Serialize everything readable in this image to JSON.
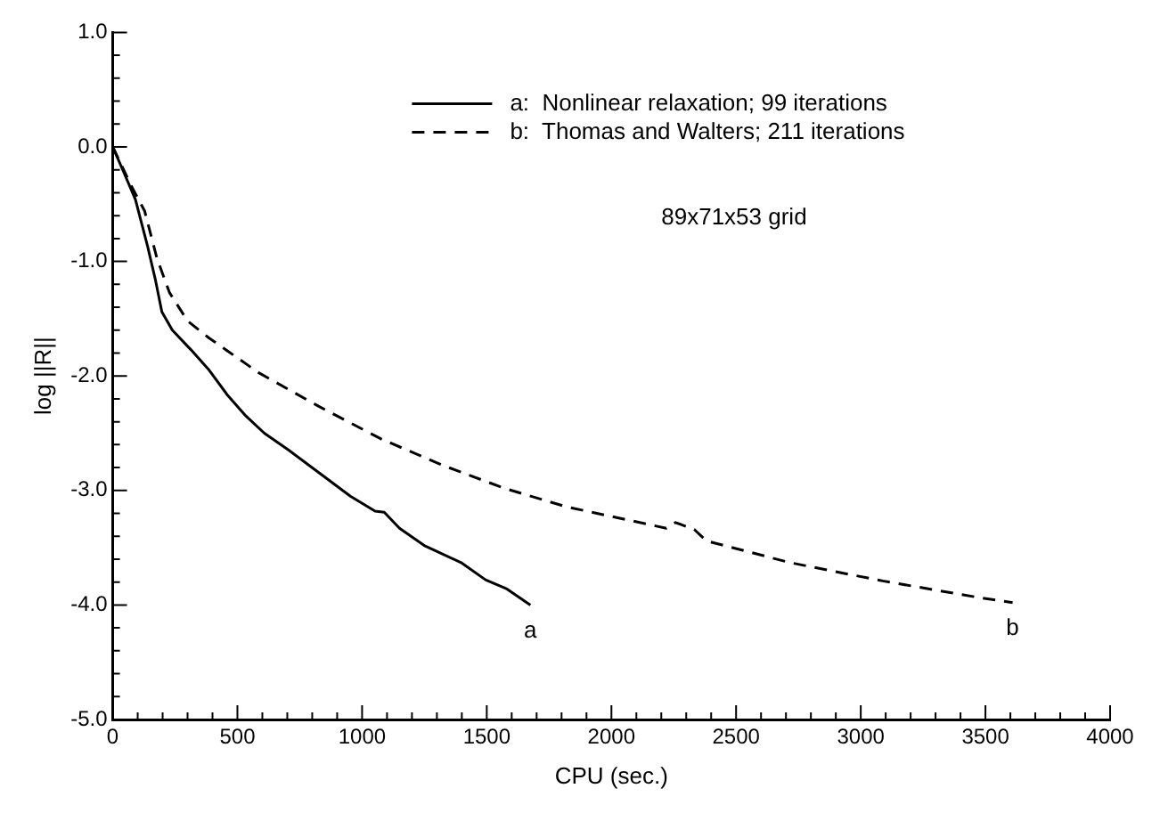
{
  "chart_data": {
    "type": "line",
    "xlabel": "CPU (sec.)",
    "ylabel": "log ||R||",
    "xlim": [
      0,
      4000
    ],
    "ylim": [
      -5,
      1
    ],
    "xticks": [
      0,
      {
        "value": 100,
        "label": null
      },
      {
        "value": 200,
        "label": null
      },
      {
        "value": 300,
        "label": null
      },
      {
        "value": 400,
        "label": null
      },
      500,
      {
        "value": 600,
        "label": null
      },
      {
        "value": 700,
        "label": null
      },
      {
        "value": 800,
        "label": null
      },
      {
        "value": 900,
        "label": null
      },
      1000,
      {
        "value": 1100,
        "label": null
      },
      {
        "value": 1200,
        "label": null
      },
      {
        "value": 1300,
        "label": null
      },
      {
        "value": 1400,
        "label": null
      },
      1500,
      {
        "value": 1600,
        "label": null
      },
      {
        "value": 1700,
        "label": null
      },
      {
        "value": 1800,
        "label": null
      },
      {
        "value": 1900,
        "label": null
      },
      2000,
      {
        "value": 2100,
        "label": null
      },
      {
        "value": 2200,
        "label": null
      },
      {
        "value": 2300,
        "label": null
      },
      {
        "value": 2400,
        "label": null
      },
      2500,
      {
        "value": 2600,
        "label": null
      },
      {
        "value": 2700,
        "label": null
      },
      {
        "value": 2800,
        "label": null
      },
      {
        "value": 2900,
        "label": null
      },
      3000,
      {
        "value": 3100,
        "label": null
      },
      {
        "value": 3200,
        "label": null
      },
      {
        "value": 3300,
        "label": null
      },
      {
        "value": 3400,
        "label": null
      },
      3500,
      {
        "value": 3600,
        "label": null
      },
      {
        "value": 3700,
        "label": null
      },
      {
        "value": 3800,
        "label": null
      },
      {
        "value": 3900,
        "label": null
      },
      4000
    ],
    "yticks": [
      {
        "value": -5,
        "label": "-5.0"
      },
      {
        "value": -4.8,
        "label": null
      },
      {
        "value": -4.6,
        "label": null
      },
      {
        "value": -4.4,
        "label": null
      },
      {
        "value": -4.2,
        "label": null
      },
      {
        "value": -4,
        "label": "-4.0"
      },
      {
        "value": -3.8,
        "label": null
      },
      {
        "value": -3.6,
        "label": null
      },
      {
        "value": -3.4,
        "label": null
      },
      {
        "value": -3.2,
        "label": null
      },
      {
        "value": -3,
        "label": "-3.0"
      },
      {
        "value": -2.8,
        "label": null
      },
      {
        "value": -2.6,
        "label": null
      },
      {
        "value": -2.4,
        "label": null
      },
      {
        "value": -2.2,
        "label": null
      },
      {
        "value": -2,
        "label": "-2.0"
      },
      {
        "value": -1.8,
        "label": null
      },
      {
        "value": -1.6,
        "label": null
      },
      {
        "value": -1.4,
        "label": null
      },
      {
        "value": -1.2,
        "label": null
      },
      {
        "value": -1,
        "label": "-1.0"
      },
      {
        "value": -0.8,
        "label": null
      },
      {
        "value": -0.6,
        "label": null
      },
      {
        "value": -0.4,
        "label": null
      },
      {
        "value": -0.2,
        "label": null
      },
      {
        "value": 0,
        "label": "0.0"
      },
      {
        "value": 0.2,
        "label": null
      },
      {
        "value": 0.4,
        "label": null
      },
      {
        "value": 0.6,
        "label": null
      },
      {
        "value": 0.8,
        "label": null
      },
      {
        "value": 1,
        "label": "1.0"
      }
    ],
    "legend": "top",
    "grid": false,
    "marker": "none",
    "annotations": [
      {
        "text": "a",
        "x": 1675,
        "y": -4.0
      },
      {
        "text": "b",
        "x": 3609,
        "y": -3.98
      },
      "89x71x53 grid"
    ],
    "series": [
      {
        "name": "a:  Nonlinear relaxation; 99 iterations",
        "color": "#000000",
        "line_style": "solid",
        "x": [
          0,
          42,
          91,
          140,
          172,
          197,
          239,
          313,
          387,
          461,
          534,
          608,
          707,
          830,
          953,
          1052,
          1089,
          1150,
          1249,
          1397,
          1495,
          1581,
          1675
        ],
        "values": [
          0,
          -0.21,
          -0.46,
          -0.87,
          -1.17,
          -1.44,
          -1.6,
          -1.77,
          -1.95,
          -2.17,
          -2.35,
          -2.5,
          -2.65,
          -2.85,
          -3.05,
          -3.18,
          -3.19,
          -3.33,
          -3.48,
          -3.63,
          -3.78,
          -3.86,
          -4.0
        ]
      },
      {
        "name": "b:  Thomas and Walters; 211 iterations",
        "color": "#000000",
        "line_style": "dashed",
        "x": [
          0,
          79,
          128,
          177,
          227,
          300,
          387,
          584,
          830,
          1076,
          1323,
          1569,
          1815,
          2220,
          2257,
          2332,
          2381,
          2716,
          3088,
          3460,
          3609
        ],
        "values": [
          0,
          -0.36,
          -0.56,
          -0.97,
          -1.27,
          -1.52,
          -1.67,
          -1.97,
          -2.27,
          -2.55,
          -2.78,
          -2.98,
          -3.14,
          -3.33,
          -3.28,
          -3.34,
          -3.44,
          -3.63,
          -3.79,
          -3.93,
          -3.98
        ]
      }
    ]
  }
}
